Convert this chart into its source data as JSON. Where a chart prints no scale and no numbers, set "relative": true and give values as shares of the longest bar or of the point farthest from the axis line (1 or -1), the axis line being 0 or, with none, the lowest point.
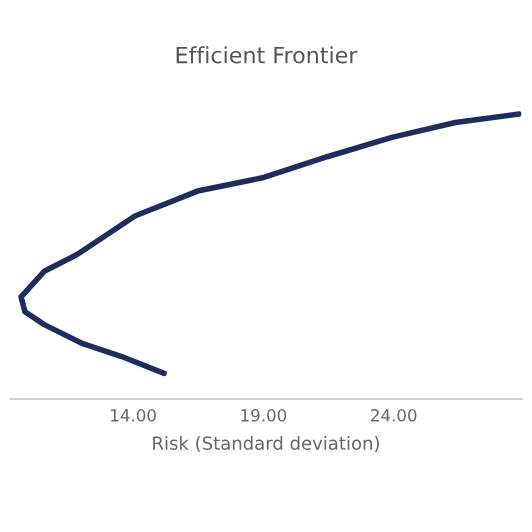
{
  "chart_data": {
    "type": "line",
    "title": "Efficient Frontier",
    "xlabel": "Risk (Standard deviation)",
    "relative": true,
    "x": [
      15.19,
      13.56,
      12.07,
      10.59,
      9.85,
      9.7,
      10.59,
      11.85,
      14.07,
      16.52,
      18.96,
      21.48,
      23.93,
      26.37,
      28.81
    ],
    "series": [
      {
        "color": "#1c2d5e",
        "values": [
          0.09,
          0.149,
          0.194,
          0.261,
          0.306,
          0.358,
          0.448,
          0.507,
          0.642,
          0.731,
          0.776,
          0.851,
          0.918,
          0.97,
          1.0
        ]
      }
    ],
    "xlim": [
      9.3,
      28.9
    ],
    "xticks": [
      {
        "value": 14,
        "label": "14.00"
      },
      {
        "value": 19,
        "label": "19.00"
      },
      {
        "value": 24,
        "label": "24.00"
      }
    ],
    "marker": "none",
    "line_style": "solid",
    "legend": false,
    "grid": false
  }
}
